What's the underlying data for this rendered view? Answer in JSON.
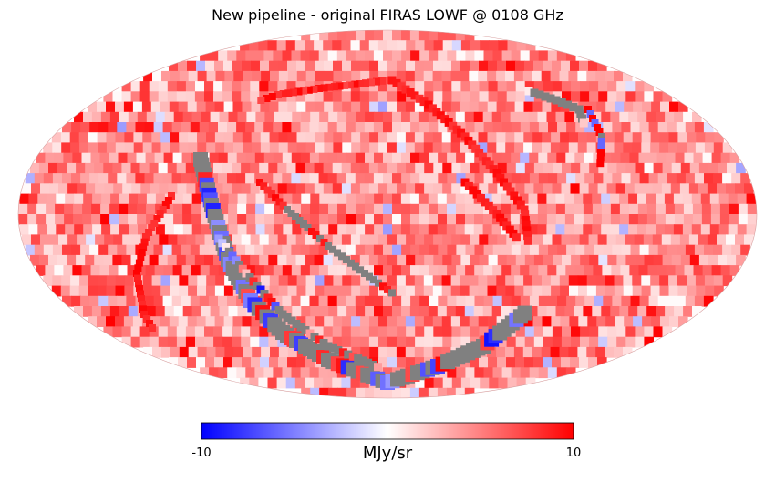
{
  "chart_data": {
    "type": "heatmap",
    "projection": "mollweide",
    "title": "New pipeline - original FIRAS LOWF @ 0108 GHz",
    "colormap": "bwr",
    "colormap_colors": [
      "#0000ff",
      "#ffffff",
      "#ff0000"
    ],
    "bad_pixel_color": "#808080",
    "vmin": -10,
    "vmax": 10,
    "colorbar": {
      "label": "MJy/sr",
      "tick_labels": [
        "-10",
        "10"
      ],
      "orientation": "horizontal",
      "placement": "bottom"
    },
    "background_level_range": [
      1,
      8
    ],
    "features": [
      {
        "name": "upper-arc",
        "kind": "strip",
        "value_range": [
          7,
          10
        ]
      },
      {
        "name": "right-diagonal",
        "kind": "strip",
        "value_range": [
          8,
          10
        ]
      },
      {
        "name": "central-diagonal",
        "kind": "masked",
        "value_range": [
          8,
          10
        ]
      },
      {
        "name": "lower-gray-arc",
        "kind": "masked",
        "value_range": [
          -10,
          10
        ]
      },
      {
        "name": "left-outer-arc",
        "kind": "strip",
        "value_range": [
          8,
          10
        ]
      },
      {
        "name": "upper-right-gray-arc",
        "kind": "masked",
        "value_range": [
          -6,
          10
        ]
      }
    ]
  }
}
